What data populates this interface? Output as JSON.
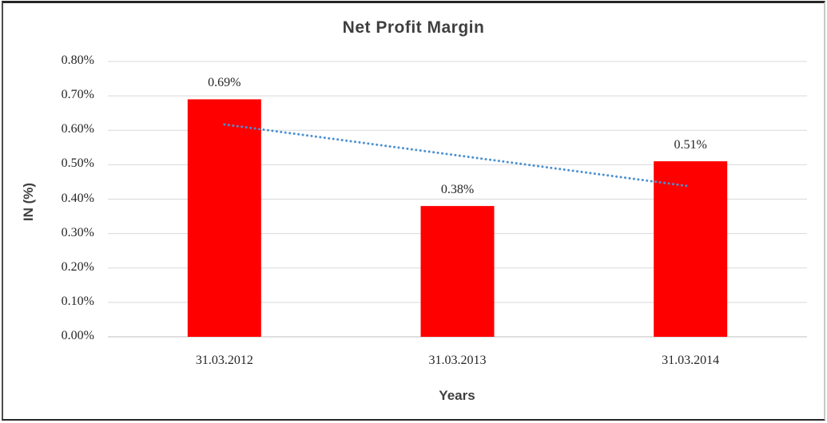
{
  "chart_data": {
    "type": "bar",
    "title": "Net Profit Margin",
    "xlabel": "Years",
    "ylabel": "IN (%)",
    "categories": [
      "31.03.2012",
      "31.03.2013",
      "31.03.2014"
    ],
    "values": [
      0.69,
      0.38,
      0.51
    ],
    "data_labels": [
      "0.69%",
      "0.38%",
      "0.51%"
    ],
    "ylim": [
      0,
      0.8
    ],
    "ytick_step": 0.1,
    "ytick_labels": [
      "0.00%",
      "0.10%",
      "0.20%",
      "0.30%",
      "0.40%",
      "0.50%",
      "0.60%",
      "0.70%",
      "0.80%"
    ],
    "grid": true,
    "legend": "none",
    "bar_color": "#FF0000",
    "gridline_color": "#D9D9D9",
    "axis_line_color": "#BFBFBF",
    "title_color": "#3F3F3F",
    "tick_color": "#262626",
    "trendline": {
      "type": "linear",
      "style": "dotted",
      "color": "#4A90D2",
      "start_value": 0.617,
      "end_value": 0.437
    }
  }
}
